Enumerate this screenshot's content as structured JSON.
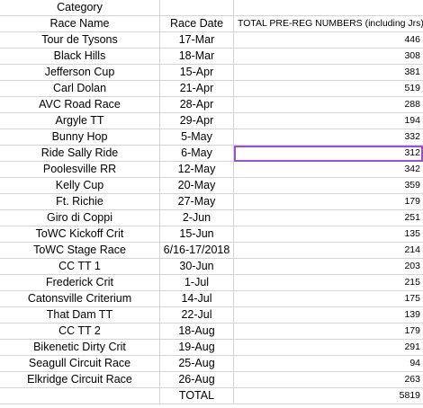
{
  "sheet": {
    "category_label": "Category",
    "headers": {
      "race_name": "Race Name",
      "race_date": "Race Date",
      "total": "TOTAL PRE-REG NUMBERS (including Jrs)"
    },
    "rows": [
      {
        "name": "Tour de Tysons",
        "date": "17-Mar",
        "count": "446"
      },
      {
        "name": "Black Hills",
        "date": "18-Mar",
        "count": "308"
      },
      {
        "name": "Jefferson Cup",
        "date": "15-Apr",
        "count": "381"
      },
      {
        "name": "Carl Dolan",
        "date": "21-Apr",
        "count": "519"
      },
      {
        "name": "AVC Road Race",
        "date": "28-Apr",
        "count": "288"
      },
      {
        "name": "Argyle TT",
        "date": "29-Apr",
        "count": "194"
      },
      {
        "name": "Bunny Hop",
        "date": "5-May",
        "count": "332"
      },
      {
        "name": "Ride Sally Ride",
        "date": "6-May",
        "count": "312"
      },
      {
        "name": "Poolesville RR",
        "date": "12-May",
        "count": "342"
      },
      {
        "name": "Kelly Cup",
        "date": "20-May",
        "count": "359"
      },
      {
        "name": "Ft. Richie",
        "date": "27-May",
        "count": "179"
      },
      {
        "name": "Giro di Coppi",
        "date": "2-Jun",
        "count": "251"
      },
      {
        "name": "ToWC Kickoff Crit",
        "date": "15-Jun",
        "count": "135"
      },
      {
        "name": "ToWC Stage Race",
        "date": "6/16-17/2018",
        "count": "214"
      },
      {
        "name": "CC TT 1",
        "date": "30-Jun",
        "count": "203"
      },
      {
        "name": "Frederick Crit",
        "date": "1-Jul",
        "count": "215"
      },
      {
        "name": "Catonsville Criterium",
        "date": "14-Jul",
        "count": "175"
      },
      {
        "name": "That Dam TT",
        "date": "22-Jul",
        "count": "139"
      },
      {
        "name": "CC TT 2",
        "date": "18-Aug",
        "count": "179"
      },
      {
        "name": "Bikenetic Dirty Crit",
        "date": "19-Aug",
        "count": "291"
      },
      {
        "name": "Seagull Circuit Race",
        "date": "25-Aug",
        "count": "94"
      },
      {
        "name": "Elkridge Circuit Race",
        "date": "26-Aug",
        "count": "263"
      }
    ],
    "total_row": {
      "label": "TOTAL",
      "count": "5819"
    },
    "selection_color": "#9b4fd0"
  }
}
